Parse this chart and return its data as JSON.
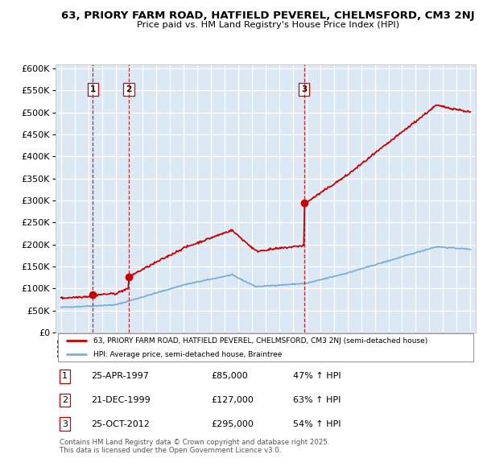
{
  "title_line1": "63, PRIORY FARM ROAD, HATFIELD PEVEREL, CHELMSFORD, CM3 2NJ",
  "title_line2": "Price paid vs. HM Land Registry's House Price Index (HPI)",
  "plot_bg_color": "#dce9f5",
  "grid_color": "#ffffff",
  "red_line_color": "#cc0000",
  "blue_line_color": "#7bafd4",
  "sale_vline_color": "#cc0000",
  "sales": [
    {
      "date_num": 1997.32,
      "price": 85000,
      "label": "1",
      "date_str": "25-APR-1997",
      "pct": "47%"
    },
    {
      "date_num": 1999.97,
      "price": 127000,
      "label": "2",
      "date_str": "21-DEC-1999",
      "pct": "63%"
    },
    {
      "date_num": 2012.82,
      "price": 295000,
      "label": "3",
      "date_str": "25-OCT-2012",
      "pct": "54%"
    }
  ],
  "legend_label_red": "63, PRIORY FARM ROAD, HATFIELD PEVEREL, CHELMSFORD, CM3 2NJ (semi-detached house)",
  "legend_label_blue": "HPI: Average price, semi-detached house, Braintree",
  "footer": "Contains HM Land Registry data © Crown copyright and database right 2025.\nThis data is licensed under the Open Government Licence v3.0.",
  "ylim": [
    0,
    610000
  ],
  "xlim_start": 1994.6,
  "xlim_end": 2025.4,
  "yticks": [
    0,
    50000,
    100000,
    150000,
    200000,
    250000,
    300000,
    350000,
    400000,
    450000,
    500000,
    550000,
    600000
  ],
  "hpi_base": 57000,
  "red_base_1995": 78000
}
